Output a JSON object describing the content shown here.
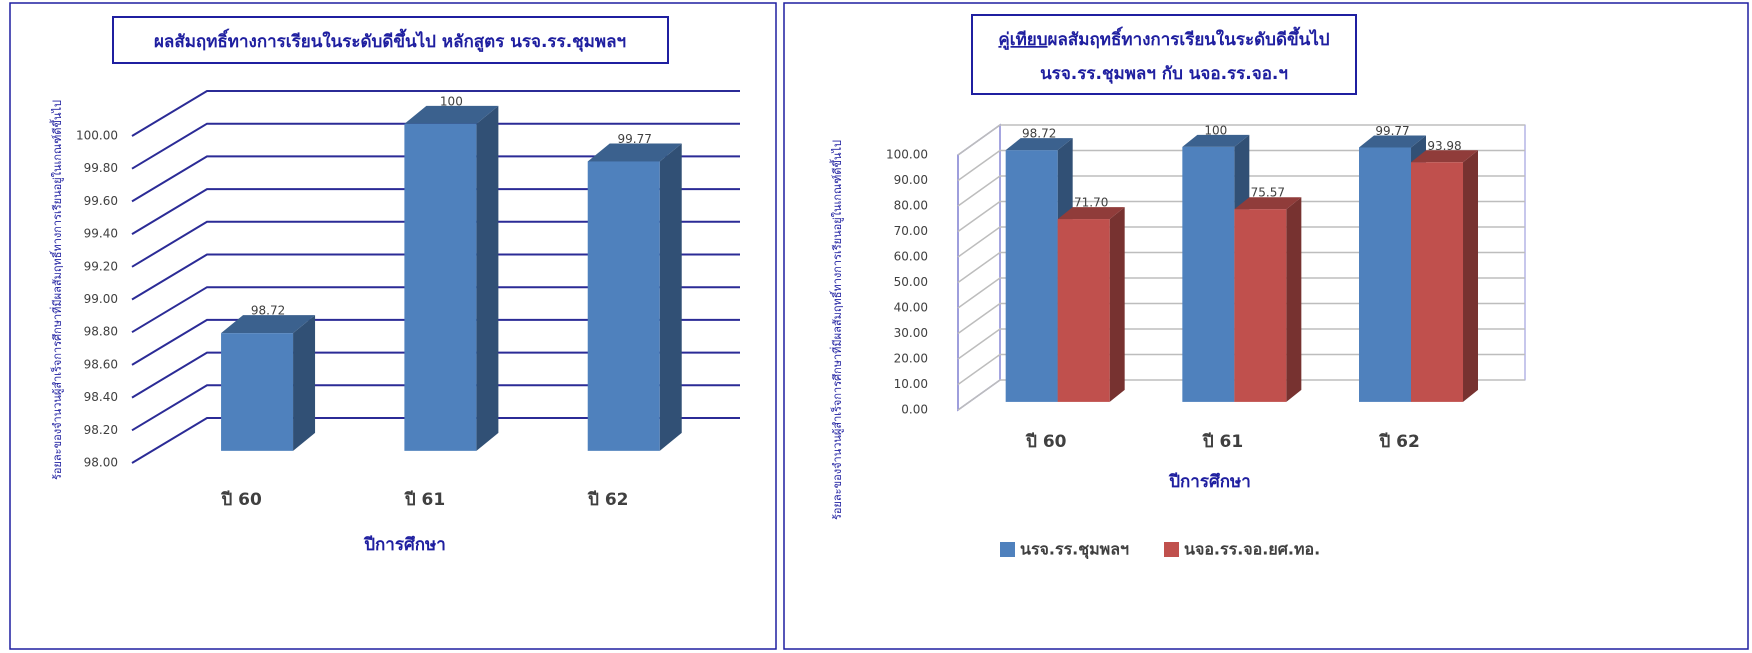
{
  "chart_data": [
    {
      "type": "bar",
      "title": "ผลสัมฤทธิ์ทางการเรียนในระดับดีขึ้นไป หลักสูตร นรจ.รร.ชุมพลฯ",
      "ylabel": "ร้อยละของจำนวนผู้สำเร็จการศึกษาที่มีผลสัมฤทธิ์ทางการเรียนอยู่ในเกณฑ์ดีขึ้นไป",
      "xlabel": "ปีการศึกษา",
      "categories": [
        "ปี 60",
        "ปี 61",
        "ปี 62"
      ],
      "values": [
        98.72,
        100,
        99.77
      ],
      "color": "#4f81bd",
      "ylim": [
        98,
        100
      ],
      "yticks": [
        {
          "value": 98,
          "label": "98.00"
        },
        {
          "value": 98.2,
          "label": "98.20"
        },
        {
          "value": 98.4,
          "label": "98.40"
        },
        {
          "value": 98.6,
          "label": "98.60"
        },
        {
          "value": 98.8,
          "label": "98.80"
        },
        {
          "value": 99,
          "label": "99.00"
        },
        {
          "value": 99.2,
          "label": "99.20"
        },
        {
          "value": 99.4,
          "label": "99.40"
        },
        {
          "value": 99.6,
          "label": "99.60"
        },
        {
          "value": 99.8,
          "label": "99.80"
        },
        {
          "value": 100,
          "label": "100.00"
        }
      ],
      "grid": true
    },
    {
      "type": "bar",
      "title": [
        "คู่เทียบ",
        "ผลสัมฤทธิ์ทางการเรียนในระดับดีขึ้นไป",
        "นรจ.รร.ชุมพลฯ กับ นจอ.รร.จอ.ฯ"
      ],
      "ylabel": "ร้อยละของจำนวนผู้สำเร็จการศึกษาที่มีผลสัมฤทธิ์ทางการเรียนอยู่ในเกณฑ์ดีขึ้นไป",
      "xlabel": "ปีการศึกษา",
      "categories": [
        "ปี 60",
        "ปี 61",
        "ปี 62"
      ],
      "series": [
        {
          "name": "นรจ.รร.ชุมพลฯ",
          "color": "#4f81bd",
          "values": [
            98.72,
            100,
            99.77
          ]
        },
        {
          "name": "นจอ.รร.จอ.ยศ.ทอ.",
          "color": "#c0504d",
          "values": [
            71.7,
            75.57,
            93.98
          ],
          "value_labels": [
            "71.70",
            "75.57",
            "93.98"
          ]
        }
      ],
      "ylim": [
        0,
        100
      ],
      "yticks": [
        {
          "value": 0,
          "label": "0.00"
        },
        {
          "value": 10,
          "label": "10.00"
        },
        {
          "value": 20,
          "label": "20.00"
        },
        {
          "value": 30,
          "label": "30.00"
        },
        {
          "value": 40,
          "label": "40.00"
        },
        {
          "value": 50,
          "label": "50.00"
        },
        {
          "value": 60,
          "label": "60.00"
        },
        {
          "value": 70,
          "label": "70.00"
        },
        {
          "value": 80,
          "label": "80.00"
        },
        {
          "value": 90,
          "label": "90.00"
        },
        {
          "value": 100,
          "label": "100.00"
        }
      ],
      "grid": true,
      "legend": "bottom"
    }
  ]
}
